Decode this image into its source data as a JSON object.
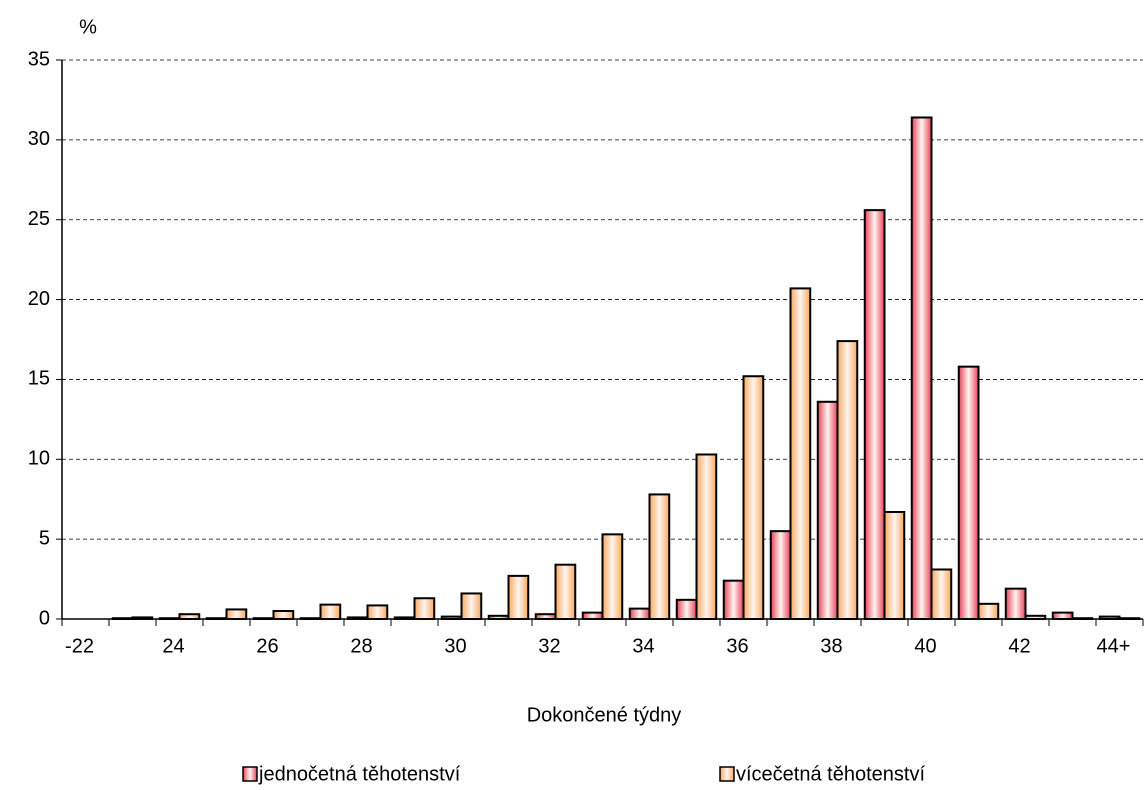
{
  "chart_data": {
    "type": "bar",
    "y_axis_label": "%",
    "x_axis_label": "Dokončené týdny",
    "categories": [
      "-22",
      null,
      "24",
      null,
      "26",
      null,
      "28",
      null,
      "30",
      null,
      "32",
      null,
      "34",
      null,
      "36",
      null,
      "38",
      null,
      "40",
      null,
      "42",
      null,
      "44+"
    ],
    "series": [
      {
        "name": "jednočetná těhotenství",
        "color": "#e8405a",
        "values": [
          0,
          0.05,
          0.05,
          0.05,
          0.05,
          0.05,
          0.1,
          0.1,
          0.15,
          0.2,
          0.3,
          0.4,
          0.65,
          1.2,
          2.4,
          5.5,
          13.6,
          25.6,
          31.4,
          15.8,
          1.9,
          0.4,
          0.15
        ]
      },
      {
        "name": "vícečetná těhotenství",
        "color": "#f7a860",
        "values": [
          0,
          0.1,
          0.3,
          0.6,
          0.5,
          0.9,
          0.85,
          1.3,
          1.6,
          2.7,
          3.4,
          5.3,
          7.8,
          10.3,
          15.2,
          20.7,
          17.4,
          6.7,
          3.1,
          0.95,
          0.2,
          0.05,
          0.05
        ]
      }
    ],
    "ylim": [
      0,
      35
    ],
    "yticks": [
      0,
      5,
      10,
      15,
      20,
      25,
      30,
      35
    ],
    "grid": true
  }
}
